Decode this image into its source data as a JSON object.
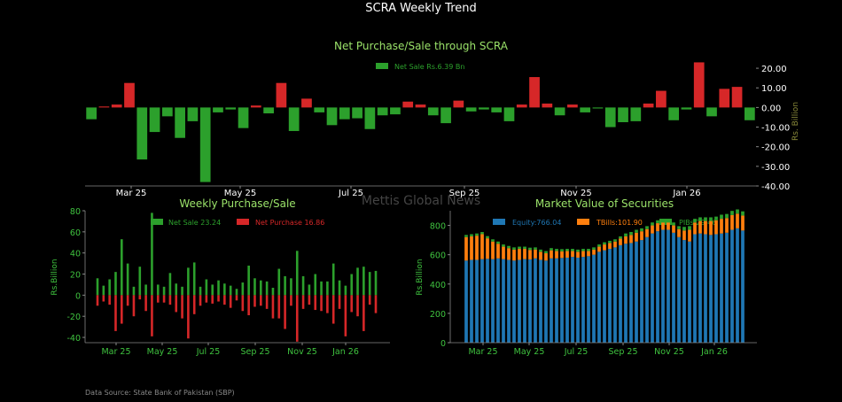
{
  "title": "SCRA Weekly Trend",
  "watermark": "Mettis Global News",
  "source": "Data Source: State Bank of Pakistan (SBP)",
  "colors": {
    "green": "#2ca02c",
    "red": "#d62728",
    "blue": "#1f77b4",
    "orange": "#ff7f0e",
    "title_green": "#9be36a",
    "tick_green": "#3fc33f",
    "axis_olive": "#8a8a3a"
  },
  "chart_data": [
    {
      "type": "bar",
      "title": "Net Purchase/Sale through SCRA",
      "legend": "Net Sale Rs.6.39 Bn",
      "ylabel": "Rs. Billion",
      "ylim": [
        -40,
        25
      ],
      "yticks": [
        20,
        10,
        0,
        -10,
        -20,
        -30,
        -40
      ],
      "ytick_labels": [
        "20.00",
        "10.00",
        "0.00",
        "-10.00",
        "-20.00",
        "-30.00",
        "-40.00"
      ],
      "x_ticks": [
        "Mar 25",
        "May 25",
        "Jul 25",
        "Sep 25",
        "Nov 25",
        "Jan 26"
      ],
      "values": [
        -6,
        0.5,
        1.5,
        12.5,
        -26.5,
        -12.5,
        -4.5,
        -15.5,
        -7,
        -38,
        -2.5,
        -1,
        -10.5,
        1,
        -3,
        12.5,
        -12,
        4.5,
        -2.5,
        -9,
        -6,
        -5.5,
        -11,
        -4,
        -3.5,
        3,
        1.5,
        -4,
        -8,
        3.5,
        -2,
        -1,
        -2.5,
        -7,
        1.5,
        15.5,
        2,
        -4,
        1.5,
        -2.5,
        -0.5,
        -10,
        -7.5,
        -7,
        2,
        8.5,
        -6.5,
        -1,
        23,
        -4.5,
        9.5,
        10.5,
        -6.5
      ]
    },
    {
      "type": "bar",
      "title": "Weekly Purchase/Sale",
      "ylabel": "Rs.Billion",
      "ylim": [
        -45,
        80
      ],
      "yticks": [
        80,
        60,
        40,
        20,
        0,
        -20,
        -40
      ],
      "x_ticks": [
        "Mar 25",
        "May 25",
        "Jul 25",
        "Sep 25",
        "Nov 25",
        "Jan 26"
      ],
      "series": [
        {
          "name": "Net Sale 23.24",
          "values": [
            16,
            9,
            15,
            22,
            53,
            30,
            8,
            27,
            10,
            78,
            10,
            8,
            21,
            11,
            8,
            26,
            31,
            8,
            15,
            10,
            14,
            11,
            9,
            6,
            12,
            28,
            16,
            14,
            13,
            7,
            25,
            18,
            16,
            42,
            18,
            10,
            20,
            13,
            13,
            30,
            14,
            9,
            20,
            26,
            27,
            22,
            23
          ]
        },
        {
          "name": "Net Purchase 16.86",
          "values": [
            -10,
            -6,
            -9,
            -34,
            -27,
            -10,
            -20,
            -4,
            -15,
            -39,
            -7,
            -7,
            -9,
            -16,
            -22,
            -41,
            -18,
            -10,
            -7,
            -8,
            -6,
            -9,
            -12,
            -5,
            -15,
            -19,
            -11,
            -10,
            -13,
            -22,
            -22,
            -32,
            -10,
            -44,
            -13,
            -9,
            -14,
            -15,
            -17,
            -27,
            -13,
            -39,
            -16,
            -20,
            -34,
            -9,
            -17
          ]
        }
      ]
    },
    {
      "type": "bar",
      "title": "Market Value of Securities",
      "ylabel": "Rs.Billion",
      "ylim": [
        0,
        900
      ],
      "yticks": [
        800,
        600,
        400,
        200,
        0
      ],
      "x_ticks": [
        "Mar 25",
        "May 25",
        "Jul 25",
        "Sep 25",
        "Nov 25",
        "Jan 26"
      ],
      "stacked": true,
      "series": [
        {
          "name": "Equity:766.04",
          "values": [
            560,
            565,
            565,
            570,
            572,
            570,
            575,
            570,
            565,
            560,
            565,
            570,
            568,
            575,
            565,
            560,
            575,
            575,
            578,
            580,
            585,
            580,
            585,
            590,
            600,
            620,
            630,
            640,
            650,
            665,
            675,
            680,
            690,
            700,
            720,
            745,
            760,
            770,
            770,
            750,
            720,
            700,
            690,
            740,
            745,
            740,
            735,
            740,
            745,
            750,
            770,
            780,
            765
          ]
        },
        {
          "name": "TBills:101.90",
          "values": [
            160,
            160,
            165,
            170,
            140,
            120,
            100,
            85,
            80,
            75,
            75,
            70,
            65,
            60,
            55,
            50,
            55,
            50,
            45,
            45,
            40,
            40,
            40,
            35,
            35,
            35,
            40,
            40,
            40,
            45,
            50,
            55,
            60,
            60,
            55,
            55,
            55,
            50,
            50,
            50,
            55,
            65,
            80,
            80,
            85,
            90,
            95,
            95,
            100,
            100,
            100,
            100,
            102
          ]
        },
        {
          "name": "PIBs 29.46",
          "values": [
            15,
            15,
            15,
            15,
            15,
            15,
            15,
            15,
            15,
            15,
            15,
            15,
            15,
            15,
            15,
            15,
            15,
            15,
            15,
            15,
            15,
            15,
            15,
            15,
            15,
            15,
            15,
            15,
            15,
            15,
            20,
            20,
            20,
            20,
            20,
            20,
            20,
            20,
            20,
            20,
            20,
            25,
            25,
            25,
            25,
            25,
            25,
            25,
            28,
            28,
            29,
            29,
            29
          ]
        }
      ]
    }
  ]
}
